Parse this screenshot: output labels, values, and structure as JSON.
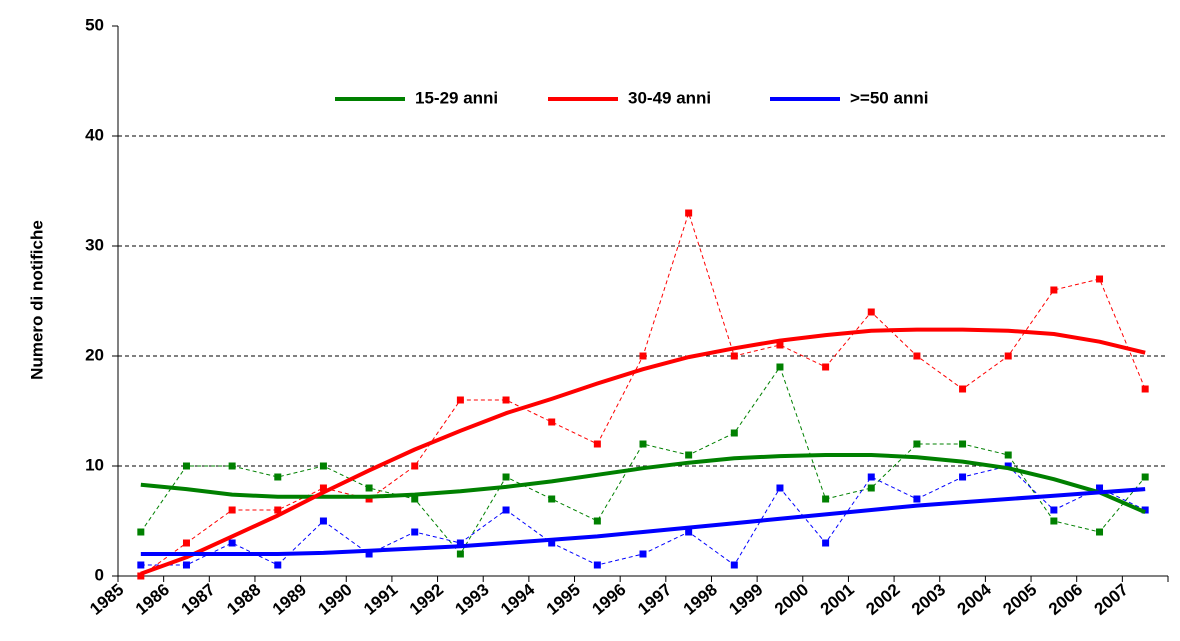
{
  "chart_data": {
    "type": "line",
    "y_label": "Numero di notifiche",
    "categories": [
      "1985",
      "1986",
      "1987",
      "1988",
      "1989",
      "1990",
      "1991",
      "1992",
      "1993",
      "1994",
      "1995",
      "1996",
      "1997",
      "1998",
      "1999",
      "2000",
      "2001",
      "2002",
      "2003",
      "2004",
      "2005",
      "2006",
      "2007"
    ],
    "series": [
      {
        "name": "15-29 anni",
        "color": "#008000",
        "values": [
          4,
          10,
          10,
          9,
          10,
          8,
          7,
          2,
          9,
          7,
          5,
          12,
          11,
          13,
          19,
          7,
          8,
          12,
          12,
          11,
          5,
          4,
          9
        ],
        "trend": [
          8.3,
          7.9,
          7.4,
          7.2,
          7.2,
          7.2,
          7.4,
          7.7,
          8.1,
          8.6,
          9.2,
          9.8,
          10.3,
          10.7,
          10.9,
          11.0,
          11.0,
          10.8,
          10.4,
          9.8,
          8.8,
          7.6,
          5.8
        ]
      },
      {
        "name": "30-49 anni",
        "color": "#ff0000",
        "values": [
          0,
          3,
          6,
          6,
          8,
          7,
          10,
          16,
          16,
          14,
          12,
          20,
          33,
          20,
          21,
          19,
          24,
          20,
          17,
          20,
          26,
          27,
          17
        ],
        "trend": [
          0.2,
          1.7,
          3.6,
          5.5,
          7.6,
          9.6,
          11.5,
          13.2,
          14.8,
          16.1,
          17.5,
          18.8,
          19.9,
          20.7,
          21.4,
          21.9,
          22.3,
          22.4,
          22.4,
          22.3,
          22.0,
          21.3,
          20.3
        ]
      },
      {
        "name": ">=50 anni",
        "color": "#0000ff",
        "values": [
          1,
          1,
          3,
          1,
          5,
          2,
          4,
          3,
          6,
          3,
          1,
          2,
          4,
          1,
          8,
          3,
          9,
          7,
          9,
          10,
          6,
          8,
          6
        ],
        "trend": [
          2,
          2,
          2,
          2,
          2.1,
          2.3,
          2.5,
          2.7,
          3.0,
          3.3,
          3.6,
          4.0,
          4.4,
          4.8,
          5.2,
          5.6,
          6.0,
          6.4,
          6.7,
          7.0,
          7.3,
          7.6,
          7.9
        ]
      }
    ],
    "ylim": [
      0,
      50
    ],
    "yticks": [
      0,
      10,
      20,
      30,
      40,
      50
    ],
    "grid": true,
    "legend": "top"
  }
}
